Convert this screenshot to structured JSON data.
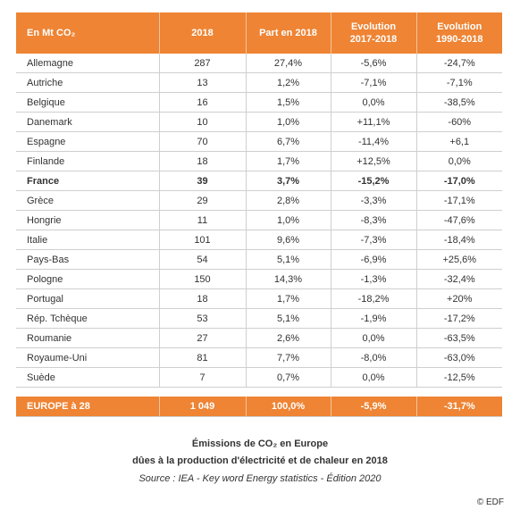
{
  "table": {
    "header": [
      "En Mt CO₂",
      "2018",
      "Part en 2018",
      "Evolution\n2017-2018",
      "Evolution\n1990-2018"
    ],
    "rows": [
      [
        "Allemagne",
        "287",
        "27,4%",
        "-5,6%",
        "-24,7%"
      ],
      [
        "Autriche",
        "13",
        "1,2%",
        "-7,1%",
        "-7,1%"
      ],
      [
        "Belgique",
        "16",
        "1,5%",
        "0,0%",
        "-38,5%"
      ],
      [
        "Danemark",
        "10",
        "1,0%",
        "+11,1%",
        "-60%"
      ],
      [
        "Espagne",
        "70",
        "6,7%",
        "-11,4%",
        "+6,1"
      ],
      [
        "Finlande",
        "18",
        "1,7%",
        "+12,5%",
        "0,0%"
      ],
      [
        "France",
        "39",
        "3,7%",
        "-15,2%",
        "-17,0%"
      ],
      [
        "Grèce",
        "29",
        "2,8%",
        "-3,3%",
        "-17,1%"
      ],
      [
        "Hongrie",
        "11",
        "1,0%",
        "-8,3%",
        "-47,6%"
      ],
      [
        "Italie",
        "101",
        "9,6%",
        "-7,3%",
        "-18,4%"
      ],
      [
        "Pays-Bas",
        "54",
        "5,1%",
        "-6,9%",
        "+25,6%"
      ],
      [
        "Pologne",
        "150",
        "14,3%",
        "-1,3%",
        "-32,4%"
      ],
      [
        "Portugal",
        "18",
        "1,7%",
        "-18,2%",
        "+20%"
      ],
      [
        "Rép. Tchèque",
        "53",
        "5,1%",
        "-1,9%",
        "-17,2%"
      ],
      [
        "Roumanie",
        "27",
        "2,6%",
        "0,0%",
        "-63,5%"
      ],
      [
        "Royaume-Uni",
        "81",
        "7,7%",
        "-8,0%",
        "-63,0%"
      ],
      [
        "Suède",
        "7",
        "0,7%",
        "0,0%",
        "-12,5%"
      ]
    ],
    "bold_rows": [
      6
    ],
    "footer": [
      "EUROPE à 28",
      "1 049",
      "100,0%",
      "-5,9%",
      "-31,7%"
    ],
    "color": "#ee8434"
  },
  "caption": {
    "title": "Émissions  de CO₂ en Europe",
    "subtitle": "dûes à la production d'électricité et de chaleur en 2018",
    "source": "Source : IEA - Key word Energy statistics -  Édition 2020"
  },
  "copyright": "© EDF"
}
